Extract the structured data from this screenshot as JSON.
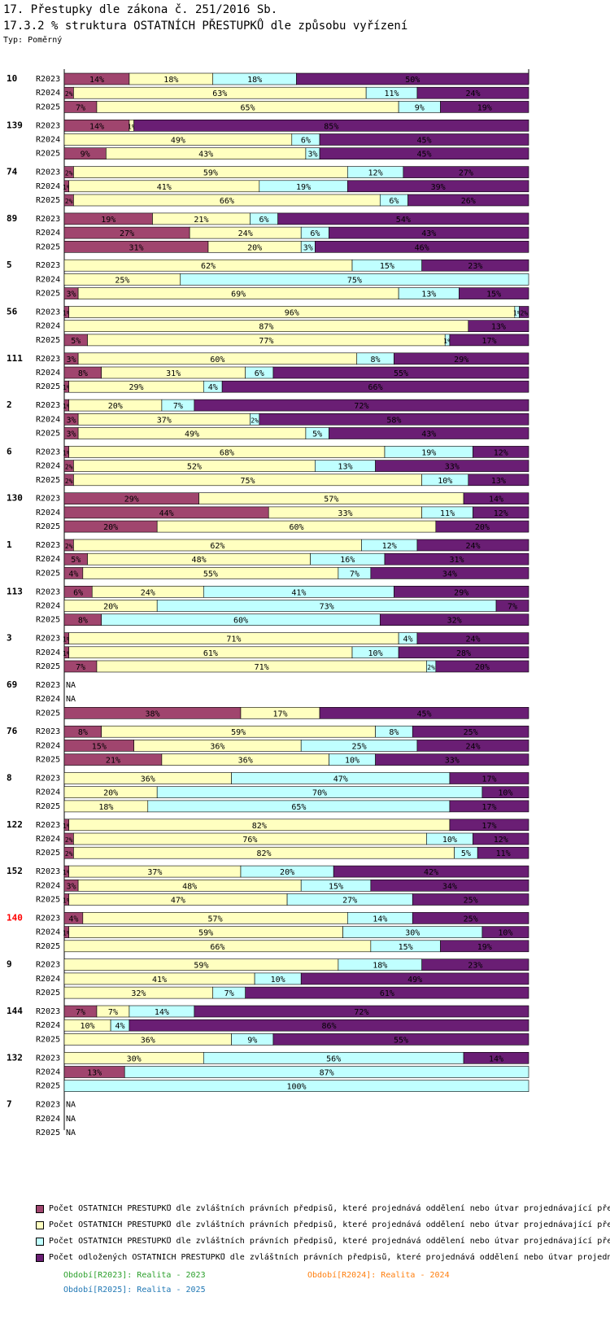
{
  "header": {
    "title1": "17. Přestupky dle zákona č. 251/2016 Sb.",
    "title2": "17.3.2 % struktura OSTATNÍCH PŘESTUPKŮ dle způsobu vyřízení",
    "type_label": "Typ: Poměrný"
  },
  "colors": {
    "s1": "#a0456e",
    "s2": "#ffffc0",
    "s3": "#c0ffff",
    "s4": "#6a1e74",
    "highlight_group": "#ff0000",
    "period_2023": "#2ca02c",
    "period_2024": "#ff7f0e",
    "period_2025": "#1f77b4"
  },
  "chart_data": {
    "type": "bar",
    "orientation": "horizontal",
    "stacked": "percent",
    "title": "17.3.2 % struktura OSTATNÍCH PŘESTUPKŮ dle způsobu vyřízení",
    "xlim": [
      0,
      100
    ],
    "series_names": [
      "Počet OSTATNÍCH PŘESTUPKŮ dle zvláštních právních předpisů, které projednává oddělení nebo útvar projednávající pře",
      "Počet OSTATNÍCH PŘESTUPKŮ dle zvláštních právních předpisů, které projednává oddělení nebo útvar projednávající pře",
      "Počet OSTATNÍCH PŘESTUPKŮ dle zvláštních právních předpisů, které projednává oddělení nebo útvar projednávající pře",
      "Počet odložených OSTATNÍCH PŘESTUPKŮ dle zvláštních právních předpisů, které projednává oddělení nebo útvar projedn"
    ],
    "periods": [
      "R2023",
      "R2024",
      "R2025"
    ],
    "na_label": "NA",
    "groups": [
      {
        "label": "10",
        "rows": [
          [
            14,
            18,
            18,
            50
          ],
          [
            2,
            63,
            11,
            24
          ],
          [
            7,
            65,
            9,
            19
          ]
        ]
      },
      {
        "label": "139",
        "rows": [
          [
            14,
            1,
            0,
            85
          ],
          [
            0,
            49,
            6,
            45
          ],
          [
            9,
            43,
            3,
            45
          ]
        ]
      },
      {
        "label": "74",
        "rows": [
          [
            2,
            59,
            12,
            27
          ],
          [
            1,
            41,
            19,
            39
          ],
          [
            2,
            66,
            6,
            26
          ]
        ]
      },
      {
        "label": "89",
        "rows": [
          [
            19,
            21,
            6,
            54
          ],
          [
            27,
            24,
            6,
            43
          ],
          [
            31,
            20,
            3,
            46
          ]
        ]
      },
      {
        "label": "5",
        "rows": [
          [
            0,
            62,
            15,
            23
          ],
          [
            0,
            25,
            75,
            0
          ],
          [
            3,
            69,
            13,
            15
          ]
        ]
      },
      {
        "label": "56",
        "rows": [
          [
            1,
            96,
            1,
            2
          ],
          [
            0,
            87,
            0,
            13
          ],
          [
            5,
            77,
            1,
            17
          ]
        ]
      },
      {
        "label": "111",
        "rows": [
          [
            3,
            60,
            8,
            29
          ],
          [
            8,
            31,
            6,
            55
          ],
          [
            1,
            29,
            4,
            66
          ]
        ]
      },
      {
        "label": "2",
        "rows": [
          [
            1,
            20,
            7,
            72
          ],
          [
            3,
            37,
            2,
            58
          ],
          [
            3,
            49,
            5,
            43
          ]
        ]
      },
      {
        "label": "6",
        "rows": [
          [
            1,
            68,
            19,
            12
          ],
          [
            2,
            52,
            13,
            33
          ],
          [
            2,
            75,
            10,
            13
          ]
        ]
      },
      {
        "label": "130",
        "rows": [
          [
            29,
            57,
            0,
            14
          ],
          [
            44,
            33,
            11,
            12
          ],
          [
            20,
            60,
            0,
            20
          ]
        ]
      },
      {
        "label": "1",
        "rows": [
          [
            2,
            62,
            12,
            24
          ],
          [
            5,
            48,
            16,
            31
          ],
          [
            4,
            55,
            7,
            34
          ]
        ]
      },
      {
        "label": "113",
        "rows": [
          [
            6,
            24,
            41,
            29
          ],
          [
            0,
            20,
            73,
            7
          ],
          [
            8,
            0,
            60,
            32
          ]
        ]
      },
      {
        "label": "3",
        "rows": [
          [
            1,
            71,
            4,
            24
          ],
          [
            1,
            61,
            10,
            28
          ],
          [
            7,
            71,
            2,
            20
          ]
        ]
      },
      {
        "label": "69",
        "rows": [
          null,
          null,
          [
            38,
            17,
            0,
            45
          ]
        ]
      },
      {
        "label": "76",
        "rows": [
          [
            8,
            59,
            8,
            25
          ],
          [
            15,
            36,
            25,
            24
          ],
          [
            21,
            36,
            10,
            33
          ]
        ]
      },
      {
        "label": "8",
        "rows": [
          [
            0,
            36,
            47,
            17
          ],
          [
            0,
            20,
            70,
            10
          ],
          [
            0,
            18,
            65,
            17
          ]
        ]
      },
      {
        "label": "122",
        "rows": [
          [
            1,
            82,
            0,
            17
          ],
          [
            2,
            76,
            10,
            12
          ],
          [
            2,
            82,
            5,
            11
          ]
        ]
      },
      {
        "label": "152",
        "rows": [
          [
            1,
            37,
            20,
            42
          ],
          [
            3,
            48,
            15,
            34
          ],
          [
            1,
            47,
            27,
            25
          ]
        ]
      },
      {
        "label": "140",
        "highlight": true,
        "rows": [
          [
            4,
            57,
            14,
            25
          ],
          [
            1,
            59,
            30,
            10
          ],
          [
            0,
            66,
            15,
            19
          ]
        ]
      },
      {
        "label": "9",
        "rows": [
          [
            0,
            59,
            18,
            23
          ],
          [
            0,
            41,
            10,
            49
          ],
          [
            0,
            32,
            7,
            61
          ]
        ]
      },
      {
        "label": "144",
        "rows": [
          [
            7,
            7,
            14,
            72
          ],
          [
            0,
            10,
            4,
            86
          ],
          [
            0,
            36,
            9,
            55
          ]
        ]
      },
      {
        "label": "132",
        "rows": [
          [
            0,
            30,
            56,
            14
          ],
          [
            13,
            0,
            87,
            0
          ],
          [
            0,
            0,
            100,
            0
          ]
        ]
      },
      {
        "label": "7",
        "rows": [
          null,
          null,
          null
        ]
      }
    ]
  },
  "legend": {
    "items": [
      "Počet OSTATNÍCH PŘESTUPKŮ dle zvláštních právních předpisů, které projednává oddělení nebo útvar projednávající pře",
      "Počet OSTATNÍCH PŘESTUPKŮ dle zvláštních právních předpisů, které projednává oddělení nebo útvar projednávající pře",
      "Počet OSTATNÍCH PŘESTUPKŮ dle zvláštních právních předpisů, které projednává oddělení nebo útvar projednávající pře",
      "Počet odložených OSTATNÍCH PŘESTUPKŮ dle zvláštních právních předpisů, které projednává oddělení nebo útvar projedn"
    ],
    "periods": [
      "Období[R2023]: Realita - 2023",
      "Období[R2024]: Realita - 2024",
      "Období[R2025]: Realita - 2025"
    ]
  }
}
